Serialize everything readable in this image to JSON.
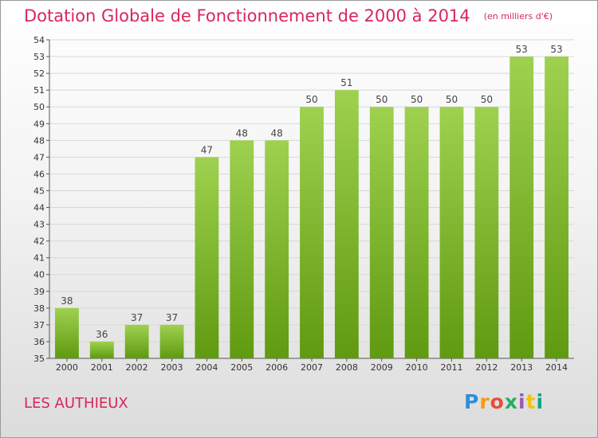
{
  "header": {
    "title": "Dotation Globale de Fonctionnement de 2000 à 2014",
    "unit": "(en milliers d'€)"
  },
  "footer": {
    "commune": "LES AUTHIEUX",
    "logo": "Proxiti"
  },
  "colors": {
    "title": "#d9265a",
    "bar_top": "#9ed14f",
    "bar_bottom": "#5f9a10",
    "grid": "#d8d8d8"
  },
  "chart_data": {
    "type": "bar",
    "title": "Dotation Globale de Fonctionnement de 2000 à 2014",
    "ylabel": "(en milliers d'€)",
    "categories": [
      "2000",
      "2001",
      "2002",
      "2003",
      "2004",
      "2005",
      "2006",
      "2007",
      "2008",
      "2009",
      "2010",
      "2011",
      "2012",
      "2013",
      "2014"
    ],
    "values": [
      38,
      36,
      37,
      37,
      47,
      48,
      48,
      50,
      51,
      50,
      50,
      50,
      50,
      53,
      53
    ],
    "ylim": [
      35,
      54
    ],
    "yticks": [
      35,
      36,
      37,
      38,
      39,
      40,
      41,
      42,
      43,
      44,
      45,
      46,
      47,
      48,
      49,
      50,
      51,
      52,
      53,
      54
    ],
    "grid": true,
    "data_labels": true
  }
}
